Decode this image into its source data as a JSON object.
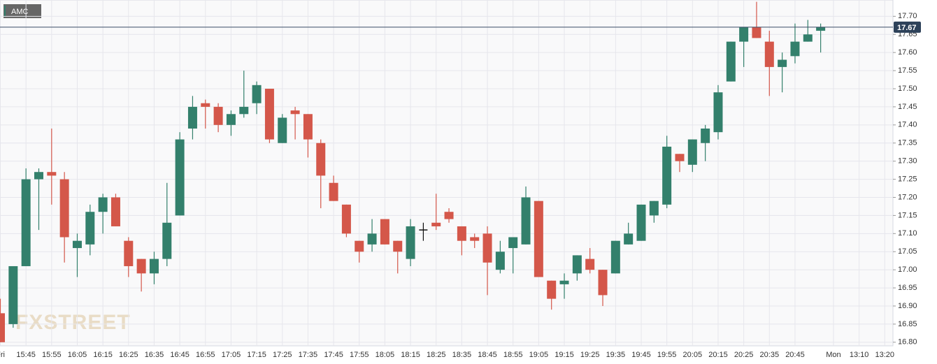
{
  "chart_data": {
    "type": "candlestick",
    "name": "AMC",
    "watermark": "FXSTREET",
    "up_color": "#33806c",
    "down_color": "#d4574a",
    "neutral_color": "#111111",
    "categories": [
      "Fri",
      null,
      "15:45",
      null,
      "15:55",
      null,
      "16:05",
      null,
      "16:15",
      null,
      "16:25",
      null,
      "16:35",
      null,
      "16:45",
      null,
      "16:55",
      null,
      "17:05",
      null,
      "17:15",
      null,
      "17:25",
      null,
      "17:35",
      null,
      "17:45",
      null,
      "17:55",
      null,
      "18:05",
      null,
      "18:15",
      null,
      "18:25",
      null,
      "18:35",
      null,
      "18:45",
      null,
      "18:55",
      null,
      "19:05",
      null,
      "19:15",
      null,
      "19:25",
      null,
      "19:35",
      null,
      "19:45",
      null,
      "19:55",
      null,
      "20:05",
      null,
      "20:15",
      null,
      "20:25",
      null,
      "20:35",
      null,
      "20:45",
      null,
      null,
      "Mon",
      null,
      "13:10",
      null,
      "13:20"
    ],
    "open": [
      16.88,
      16.85,
      17.01,
      17.25,
      17.27,
      17.25,
      17.06,
      17.07,
      17.16,
      17.2,
      17.08,
      17.03,
      16.99,
      17.03,
      17.15,
      17.39,
      17.46,
      17.45,
      17.4,
      17.43,
      17.46,
      17.5,
      17.35,
      17.44,
      17.43,
      17.35,
      17.24,
      17.18,
      17.08,
      17.07,
      17.14,
      17.08,
      17.03,
      17.11,
      17.13,
      17.16,
      17.12,
      17.09,
      17.1,
      17.0,
      17.06,
      17.07,
      17.19,
      16.97,
      16.96,
      16.99,
      17.03,
      17.0,
      16.99,
      17.07,
      17.08,
      17.15,
      17.18,
      17.32,
      17.29,
      17.35,
      17.38,
      17.52,
      17.63,
      17.67,
      17.63,
      17.56,
      17.59,
      17.63,
      17.66,
      null,
      null,
      null,
      null,
      null
    ],
    "high": [
      16.92,
      17.01,
      17.28,
      17.28,
      17.39,
      17.27,
      17.1,
      17.18,
      17.21,
      17.21,
      17.09,
      17.03,
      17.05,
      17.24,
      17.38,
      17.48,
      17.47,
      17.46,
      17.44,
      17.55,
      17.52,
      17.5,
      17.43,
      17.45,
      17.43,
      17.36,
      17.26,
      17.18,
      17.08,
      17.14,
      17.14,
      17.08,
      17.14,
      17.13,
      17.21,
      17.17,
      17.12,
      17.1,
      17.12,
      17.08,
      17.09,
      17.23,
      17.19,
      16.97,
      16.99,
      17.04,
      17.06,
      17.0,
      17.08,
      17.13,
      17.18,
      17.19,
      17.37,
      17.32,
      17.36,
      17.4,
      17.51,
      17.63,
      17.67,
      17.74,
      17.66,
      17.6,
      17.68,
      17.69,
      17.68,
      null,
      null,
      null,
      null,
      null
    ],
    "low": [
      16.8,
      16.84,
      17.01,
      17.11,
      17.18,
      17.02,
      16.98,
      17.04,
      17.1,
      17.12,
      16.98,
      16.94,
      16.96,
      17.01,
      17.15,
      17.36,
      17.39,
      17.38,
      17.37,
      17.42,
      17.43,
      17.35,
      17.35,
      17.36,
      17.31,
      17.17,
      17.19,
      17.09,
      17.02,
      17.05,
      17.07,
      16.99,
      17.01,
      17.08,
      17.11,
      17.13,
      17.04,
      17.06,
      16.93,
      16.99,
      16.99,
      17.07,
      16.98,
      16.89,
      16.92,
      16.97,
      16.99,
      16.9,
      16.99,
      17.07,
      17.08,
      17.13,
      17.17,
      17.27,
      17.27,
      17.3,
      17.36,
      17.52,
      17.56,
      17.64,
      17.48,
      17.49,
      17.57,
      17.63,
      17.6,
      null,
      null,
      null,
      null,
      null
    ],
    "close": [
      16.8,
      17.01,
      17.25,
      17.27,
      17.26,
      17.09,
      17.08,
      17.16,
      17.2,
      17.12,
      17.01,
      16.99,
      17.03,
      17.13,
      17.36,
      17.45,
      17.45,
      17.4,
      17.43,
      17.45,
      17.51,
      17.36,
      17.42,
      17.43,
      17.36,
      17.26,
      17.19,
      17.1,
      17.05,
      17.1,
      17.07,
      17.05,
      17.12,
      17.11,
      17.12,
      17.14,
      17.08,
      17.08,
      17.02,
      17.05,
      17.09,
      17.2,
      16.98,
      16.92,
      16.97,
      17.04,
      17.0,
      16.93,
      17.08,
      17.1,
      17.18,
      17.19,
      17.34,
      17.3,
      17.36,
      17.39,
      17.49,
      17.63,
      17.67,
      17.64,
      17.56,
      17.58,
      17.63,
      17.65,
      17.67,
      null,
      null,
      null,
      null,
      null
    ],
    "ylim": [
      16.79,
      17.745
    ],
    "yticks": [
      {
        "value": 16.8,
        "label": "16.80"
      },
      16.85,
      {
        "value": 16.9,
        "label": "16.90"
      },
      16.95,
      {
        "value": 17.0,
        "label": "17.00"
      },
      17.05,
      {
        "value": 17.1,
        "label": "17.10"
      },
      17.15,
      {
        "value": 17.2,
        "label": "17.20"
      },
      17.25,
      {
        "value": 17.3,
        "label": "17.30"
      },
      17.35,
      {
        "value": 17.4,
        "label": "17.40"
      },
      17.45,
      {
        "value": 17.5,
        "label": "17.50"
      },
      17.55,
      {
        "value": 17.6,
        "label": "17.60"
      },
      17.65,
      {
        "value": 17.7,
        "label": "17.70"
      }
    ],
    "last_price": {
      "value": 17.67,
      "label": "17.67"
    },
    "grid": true
  }
}
